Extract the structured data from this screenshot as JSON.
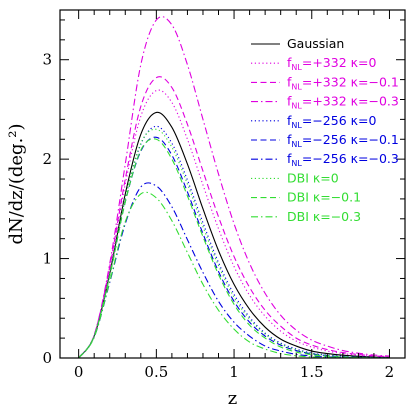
{
  "chart_data": {
    "type": "line",
    "xlabel": "z",
    "ylabel": "dN/dz/(deg.²)",
    "xlim": [
      -0.12,
      2.1
    ],
    "ylim": [
      0,
      3.5
    ],
    "xticks": [
      0,
      0.5,
      1,
      1.5,
      2
    ],
    "xtick_labels": [
      "0",
      "0.5",
      "1",
      "1.5",
      "2"
    ],
    "yticks": [
      0,
      1,
      2,
      3
    ],
    "ytick_labels": [
      "0",
      "1",
      "2",
      "3"
    ],
    "grid": false,
    "legend_position": "top-right",
    "x": [
      0,
      0.1,
      0.2,
      0.3,
      0.4,
      0.5,
      0.6,
      0.7,
      0.8,
      0.9,
      1.0,
      1.1,
      1.2,
      1.3,
      1.4,
      1.5,
      1.6,
      1.7,
      1.8,
      1.9,
      2.0
    ],
    "series": [
      {
        "name": "Gaussian",
        "label_parts": [
          "Gaussian"
        ],
        "color": "#000000",
        "dash": "solid",
        "values": [
          0,
          0.22,
          0.85,
          1.65,
          2.25,
          2.47,
          2.32,
          1.95,
          1.5,
          1.08,
          0.74,
          0.49,
          0.31,
          0.19,
          0.12,
          0.07,
          0.045,
          0.028,
          0.017,
          0.01,
          0.006
        ]
      },
      {
        "name": "f_NL=+332 κ=0",
        "label_parts": [
          "f",
          "NL",
          "=+332  κ=0"
        ],
        "color": "#e000e0",
        "dash": "dotted",
        "values": [
          0,
          0.23,
          0.9,
          1.75,
          2.43,
          2.69,
          2.57,
          2.2,
          1.74,
          1.3,
          0.92,
          0.63,
          0.42,
          0.27,
          0.17,
          0.11,
          0.07,
          0.045,
          0.028,
          0.018,
          0.011
        ]
      },
      {
        "name": "f_NL=+332 κ=-0.1",
        "label_parts": [
          "f",
          "NL",
          "=+332  κ=−0.1"
        ],
        "color": "#e000e0",
        "dash": "dashed",
        "values": [
          0,
          0.23,
          0.92,
          1.8,
          2.53,
          2.82,
          2.72,
          2.35,
          1.88,
          1.42,
          1.02,
          0.71,
          0.48,
          0.32,
          0.2,
          0.13,
          0.085,
          0.055,
          0.035,
          0.022,
          0.014
        ]
      },
      {
        "name": "f_NL=+332 κ=-0.3",
        "label_parts": [
          "f",
          "NL",
          "=+332  κ=−0.3"
        ],
        "color": "#e000e0",
        "dash": "dashdot",
        "values": [
          0,
          0.23,
          0.95,
          1.95,
          2.95,
          3.4,
          3.35,
          2.95,
          2.4,
          1.85,
          1.35,
          0.95,
          0.65,
          0.43,
          0.28,
          0.18,
          0.12,
          0.075,
          0.048,
          0.03,
          0.019
        ]
      },
      {
        "name": "f_NL=-256 κ=0",
        "label_parts": [
          "f",
          "NL",
          "=−256  κ=0"
        ],
        "color": "#0000e0",
        "dash": "dotted",
        "values": [
          0,
          0.22,
          0.84,
          1.6,
          2.15,
          2.33,
          2.16,
          1.79,
          1.36,
          0.96,
          0.64,
          0.41,
          0.25,
          0.15,
          0.09,
          0.05,
          0.03,
          0.018,
          0.01,
          0.006,
          0.003
        ]
      },
      {
        "name": "f_NL=-256 κ=-0.1",
        "label_parts": [
          "f",
          "NL",
          "=−256  κ=−0.1"
        ],
        "color": "#0000e0",
        "dash": "dashed",
        "values": [
          0,
          0.22,
          0.83,
          1.57,
          2.08,
          2.22,
          2.04,
          1.67,
          1.25,
          0.87,
          0.57,
          0.36,
          0.22,
          0.13,
          0.075,
          0.042,
          0.024,
          0.013,
          0.007,
          0.004,
          0.002
        ]
      },
      {
        "name": "f_NL=-256 κ=-0.3",
        "label_parts": [
          "f",
          "NL",
          "=−256  κ=−0.3"
        ],
        "color": "#0000e0",
        "dash": "dashdot",
        "values": [
          0,
          0.21,
          0.76,
          1.35,
          1.72,
          1.73,
          1.52,
          1.19,
          0.86,
          0.57,
          0.36,
          0.22,
          0.12,
          0.07,
          0.037,
          0.019,
          0.01,
          0.005,
          0.003,
          0.001,
          0.001
        ]
      },
      {
        "name": "DBI κ=0",
        "label_parts": [
          "DBI  κ=0"
        ],
        "color": "#33dd33",
        "dash": "dotted",
        "values": [
          0,
          0.22,
          0.84,
          1.61,
          2.16,
          2.3,
          2.12,
          1.75,
          1.32,
          0.93,
          0.61,
          0.39,
          0.24,
          0.14,
          0.08,
          0.045,
          0.025,
          0.014,
          0.008,
          0.004,
          0.002
        ]
      },
      {
        "name": "DBI κ=-0.1",
        "label_parts": [
          "DBI  κ=−0.1"
        ],
        "color": "#33dd33",
        "dash": "dashed",
        "values": [
          0,
          0.22,
          0.83,
          1.57,
          2.09,
          2.2,
          2.0,
          1.63,
          1.22,
          0.84,
          0.54,
          0.33,
          0.2,
          0.11,
          0.06,
          0.033,
          0.018,
          0.009,
          0.005,
          0.002,
          0.001
        ]
      },
      {
        "name": "DBI κ=-0.3",
        "label_parts": [
          "DBI  κ=−0.3"
        ],
        "color": "#33dd33",
        "dash": "dashdot",
        "values": [
          0,
          0.21,
          0.77,
          1.37,
          1.65,
          1.61,
          1.38,
          1.06,
          0.74,
          0.48,
          0.29,
          0.16,
          0.09,
          0.045,
          0.022,
          0.011,
          0.005,
          0.002,
          0.001,
          0.0005,
          0.0002
        ]
      }
    ]
  }
}
